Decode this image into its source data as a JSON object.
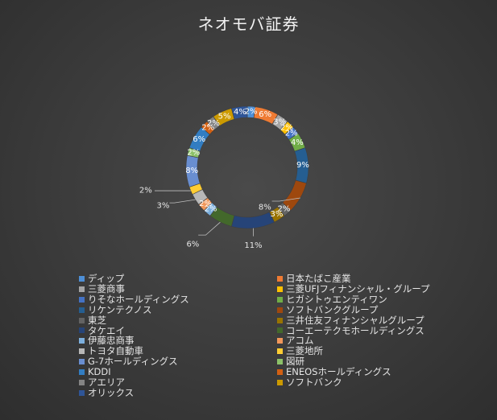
{
  "chart_data": {
    "type": "pie",
    "donut": true,
    "title": "ネオモバ証券",
    "legend_position": "bottom",
    "series": [
      {
        "name": "ディップ",
        "label": "2%",
        "value": 2,
        "color": "#4e8fd6"
      },
      {
        "name": "日本たばこ産業",
        "label": "6%",
        "value": 6,
        "color": "#ef7b33"
      },
      {
        "name": "三菱商事",
        "label": "3%",
        "value": 3,
        "color": "#a5a5a5"
      },
      {
        "name": "三菱UFJフィナンシャル・グループ",
        "label": "2%",
        "value": 2,
        "color": "#ffc000"
      },
      {
        "name": "りそなホールディングス",
        "label": "2%",
        "value": 2,
        "color": "#4472c4"
      },
      {
        "name": "ヒガシトゥエンティワン",
        "label": "4%",
        "value": 4,
        "color": "#70ad47"
      },
      {
        "name": "リケンテクノス",
        "label": "9%",
        "value": 9,
        "color": "#255e91"
      },
      {
        "name": "ソフトバンクグループ",
        "label": "8%",
        "value": 8,
        "color": "#9e480e"
      },
      {
        "name": "東芝",
        "label": "2%",
        "value": 2,
        "color": "#636363"
      },
      {
        "name": "三井住友フィナンシャルグループ",
        "label": "3%",
        "value": 3,
        "color": "#997300"
      },
      {
        "name": "タケエイ",
        "label": "11%",
        "value": 11,
        "color": "#264478"
      },
      {
        "name": "コーエーテクモホールディングス",
        "label": "6%",
        "value": 6,
        "color": "#43682b"
      },
      {
        "name": "伊藤忠商事",
        "label": "2%",
        "value": 2,
        "color": "#7cafdd"
      },
      {
        "name": "アコム",
        "label": "2%",
        "value": 2,
        "color": "#f1975a"
      },
      {
        "name": "トヨタ自動車",
        "label": "3%",
        "value": 3,
        "color": "#b7b7b7"
      },
      {
        "name": "三菱地所",
        "label": "2%",
        "value": 2,
        "color": "#ffcd33"
      },
      {
        "name": "G-7ホールディングス",
        "label": "8%",
        "value": 8,
        "color": "#698ed0"
      },
      {
        "name": "図研",
        "label": "2%",
        "value": 2,
        "color": "#8cc168"
      },
      {
        "name": "KDDI",
        "label": "6%",
        "value": 6,
        "color": "#327dc2"
      },
      {
        "name": "ENEOSホールディングス",
        "label": "2%",
        "value": 2,
        "color": "#d26012"
      },
      {
        "name": "アエリア",
        "label": "2%",
        "value": 2,
        "color": "#848484"
      },
      {
        "name": "ソフトバンク",
        "label": "5%",
        "value": 5,
        "color": "#cc9a00"
      },
      {
        "name": "オリックス",
        "label": "4%",
        "value": 4,
        "color": "#2f5597"
      }
    ]
  }
}
